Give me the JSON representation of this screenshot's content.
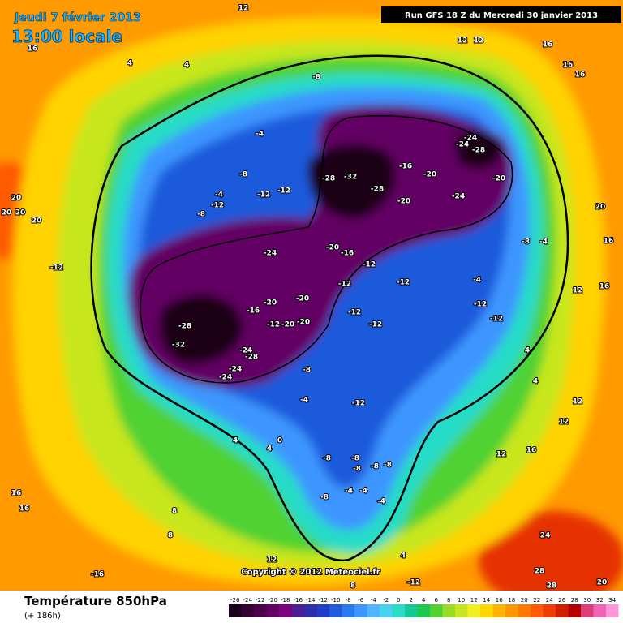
{
  "header": {
    "date": "Jeudi 7 février 2013",
    "time": "13:00 locale",
    "run": "Run GFS 18 Z du Mercredi 30 janvier 2013"
  },
  "footer": {
    "title": "Température 850hPa",
    "lead": "(+ 186h)",
    "copyright": "Copyright © 2012 Meteociel.fr"
  },
  "scale": {
    "values": [
      -26,
      -24,
      -22,
      -20,
      -18,
      -16,
      -14,
      -12,
      -10,
      -8,
      -6,
      -4,
      -2,
      0,
      2,
      4,
      6,
      8,
      10,
      12,
      14,
      16,
      18,
      20,
      22,
      24,
      26,
      28,
      30,
      32,
      34
    ],
    "colors": [
      "#1a0018",
      "#320032",
      "#4b004b",
      "#640064",
      "#7d007d",
      "#4b1e96",
      "#2d2daa",
      "#1e3cc8",
      "#1e5adc",
      "#2878f0",
      "#3c96ff",
      "#50b4ff",
      "#46d2f0",
      "#28dcc8",
      "#14c896",
      "#1ec850",
      "#50d232",
      "#96dc28",
      "#c8e61e",
      "#f0f01e",
      "#ffd700",
      "#ffb400",
      "#ff9600",
      "#ff7800",
      "#ff5a00",
      "#f03c00",
      "#d21e00",
      "#b40000",
      "#dc3c78",
      "#f064b4",
      "#ff96dc"
    ]
  },
  "map_labels": [
    12,
    16,
    4,
    4,
    -8,
    -4,
    -24,
    -24,
    -28,
    -28,
    -32,
    -28,
    -16,
    -20,
    -20,
    -20,
    -24,
    -8,
    -4,
    -12,
    -12,
    -12,
    -8,
    -24,
    -20,
    -16,
    -12,
    -12,
    -12,
    -20,
    -20,
    -16,
    -28,
    -32,
    -12,
    -20,
    -20,
    -12,
    -12,
    -24,
    -28,
    -24,
    -24,
    -8,
    -4,
    -12,
    -4,
    -12,
    -12,
    -8,
    -4,
    4,
    4,
    0,
    -8,
    -8,
    -8,
    -8,
    -8,
    -8,
    -4,
    -4,
    -4,
    4,
    20,
    20,
    20,
    20,
    -12,
    16,
    -16,
    20,
    16,
    16,
    12,
    20,
    28,
    24,
    28,
    12,
    12,
    16,
    16,
    16,
    8,
    -12,
    12,
    16,
    12,
    12,
    12,
    4,
    4,
    8,
    8,
    16
  ]
}
